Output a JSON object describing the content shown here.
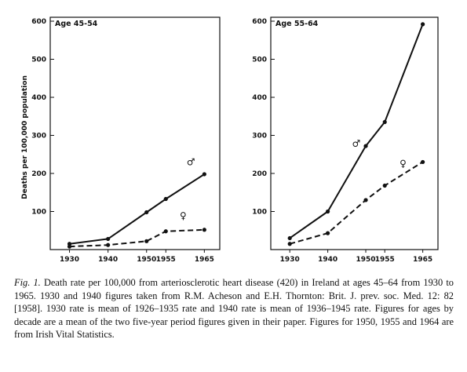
{
  "chart_data": [
    {
      "type": "line",
      "title": "Age 45-54",
      "ylabel": "Deaths per 100,000 population",
      "xlabel": "",
      "ylim": [
        0,
        600
      ],
      "yticks": [
        100,
        200,
        300,
        400,
        500,
        600
      ],
      "x": [
        1930,
        1940,
        1950,
        1955,
        1965
      ],
      "xtick_labels": [
        "1930",
        "1940",
        "1950",
        "1955",
        "1965"
      ],
      "grid": false,
      "series": [
        {
          "name": "♂",
          "style": "solid",
          "values": [
            15,
            28,
            98,
            133,
            198
          ]
        },
        {
          "name": "♀",
          "style": "dashed",
          "values": [
            8,
            12,
            22,
            48,
            52
          ]
        }
      ]
    },
    {
      "type": "line",
      "title": "Age 55-64",
      "ylabel": "",
      "xlabel": "",
      "ylim": [
        0,
        600
      ],
      "yticks": [
        100,
        200,
        300,
        400,
        500,
        600
      ],
      "x": [
        1930,
        1940,
        1950,
        1955,
        1965
      ],
      "xtick_labels": [
        "1930",
        "1940",
        "1950",
        "1955",
        "1965"
      ],
      "grid": false,
      "series": [
        {
          "name": "♂",
          "style": "solid",
          "values": [
            30,
            100,
            272,
            335,
            592
          ]
        },
        {
          "name": "♀",
          "style": "dashed",
          "values": [
            15,
            43,
            130,
            168,
            230
          ]
        }
      ]
    }
  ],
  "caption": {
    "lead": "Fig. 1.",
    "text": "Death rate per 100,000 from arteriosclerotic heart disease (420) in Ireland at ages 45–64 from 1930 to 1965. 1930 and 1940 figures taken from R.M. Acheson and E.H. Thornton: Brit. J. prev. soc. Med. 12: 82 [1958]. 1930 rate is mean of 1926–1935 rate and 1940 rate is mean of 1936–1945 rate. Figures for ages by decade are a mean of the two five-year period figures given in their paper. Figures for 1950, 1955 and 1964 are from Irish Vital Statistics."
  }
}
